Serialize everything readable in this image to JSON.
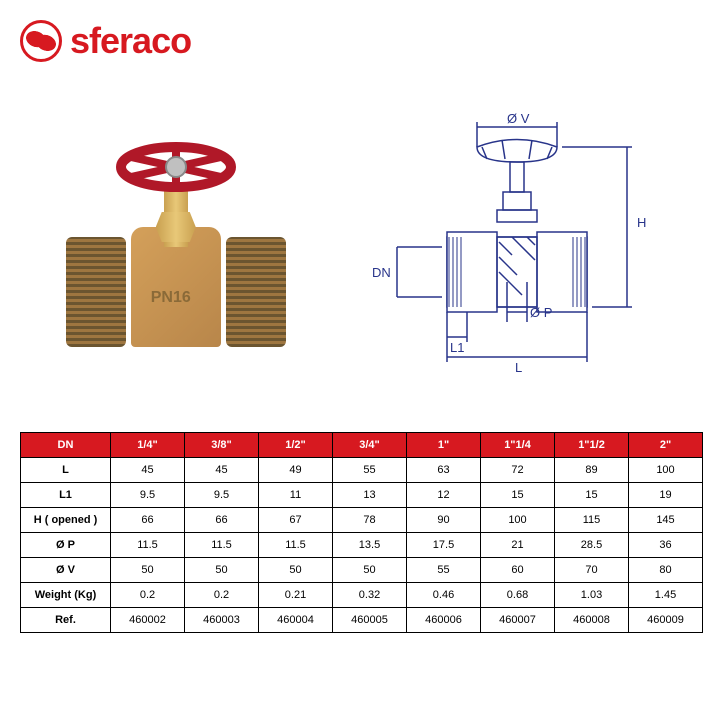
{
  "brand": "sferaco",
  "product_marking": "PN16",
  "diagram_labels": {
    "dia_v": "Ø V",
    "h": "H",
    "dn": "DN",
    "dia_p": "Ø P",
    "l1": "L1",
    "l": "L"
  },
  "table": {
    "header_label": "DN",
    "columns": [
      "1/4\"",
      "3/8\"",
      "1/2\"",
      "3/4\"",
      "1\"",
      "1\"1/4",
      "1\"1/2",
      "2\""
    ],
    "rows": [
      {
        "label": "L",
        "values": [
          "45",
          "45",
          "49",
          "55",
          "63",
          "72",
          "89",
          "100"
        ]
      },
      {
        "label": "L1",
        "values": [
          "9.5",
          "9.5",
          "11",
          "13",
          "12",
          "15",
          "15",
          "19"
        ]
      },
      {
        "label": "H ( opened )",
        "values": [
          "66",
          "66",
          "67",
          "78",
          "90",
          "100",
          "115",
          "145"
        ]
      },
      {
        "label": "Ø P",
        "values": [
          "11.5",
          "11.5",
          "11.5",
          "13.5",
          "17.5",
          "21",
          "28.5",
          "36"
        ]
      },
      {
        "label": "Ø V",
        "values": [
          "50",
          "50",
          "50",
          "50",
          "55",
          "60",
          "70",
          "80"
        ]
      },
      {
        "label": "Weight (Kg)",
        "values": [
          "0.2",
          "0.2",
          "0.21",
          "0.32",
          "0.46",
          "0.68",
          "1.03",
          "1.45"
        ]
      },
      {
        "label": "Ref.",
        "values": [
          "460002",
          "460003",
          "460004",
          "460005",
          "460006",
          "460007",
          "460008",
          "460009"
        ]
      }
    ]
  },
  "colors": {
    "brand_red": "#d71920",
    "diagram_blue": "#28348a",
    "brass_light": "#d4a05a",
    "brass_dark": "#9e7640",
    "handwheel_red": "#b01828"
  }
}
